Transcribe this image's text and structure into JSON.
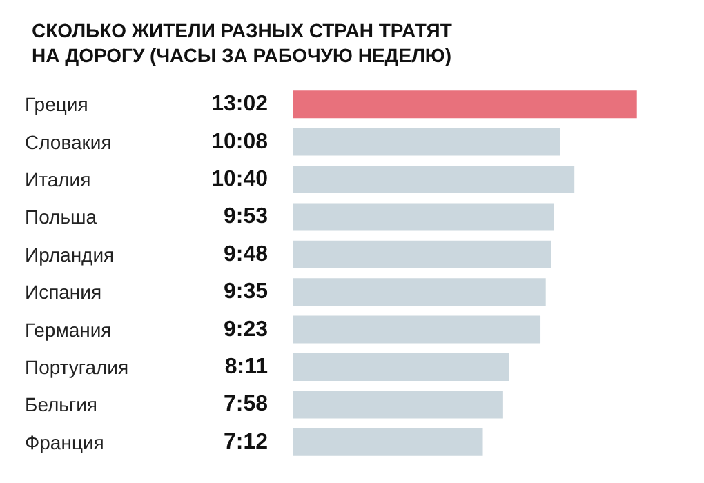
{
  "chart_data": {
    "type": "bar",
    "orientation": "horizontal",
    "title": "СКОЛЬКО ЖИТЕЛИ РАЗНЫХ СТРАН ТРАТЯТ НА ДОРОГУ (ЧАСЫ ЗА РАБОЧУЮ НЕДЕЛЮ)",
    "categories": [
      "Греция",
      "Словакия",
      "Италия",
      "Польша",
      "Ирландия",
      "Испания",
      "Германия",
      "Португалия",
      "Бельгия",
      "Франция"
    ],
    "values": [
      13.033,
      10.133,
      10.667,
      9.883,
      9.8,
      9.583,
      9.383,
      8.183,
      7.967,
      7.2
    ],
    "value_labels": [
      "13:02",
      "10:08",
      "10:40",
      "9:53",
      "9:48",
      "9:35",
      "9:23",
      "8:11",
      "7:58",
      "7:12"
    ],
    "colors": [
      "#e8717c",
      "#cbd7de",
      "#cbd7de",
      "#cbd7de",
      "#cbd7de",
      "#cbd7de",
      "#cbd7de",
      "#cbd7de",
      "#cbd7de",
      "#cbd7de"
    ],
    "tick_labels": "y"
  }
}
